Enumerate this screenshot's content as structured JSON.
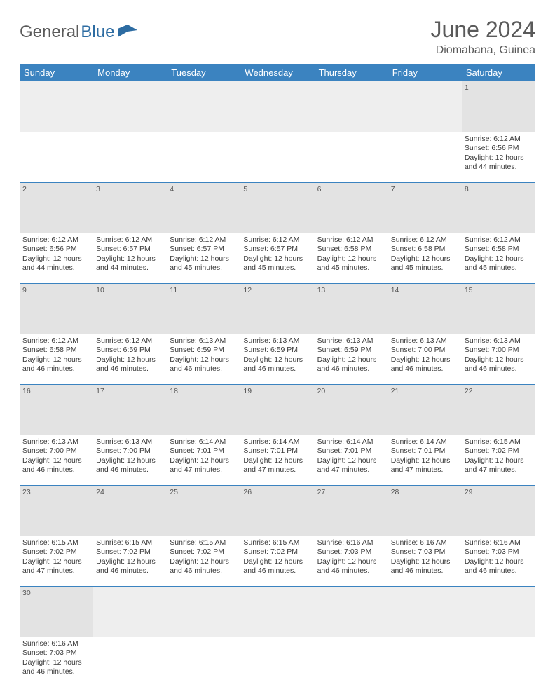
{
  "branding": {
    "logo_text_1": "General",
    "logo_text_2": "Blue",
    "logo_text_color": "#5a5a5a",
    "logo_accent_color": "#2d6ca2"
  },
  "header": {
    "month_title": "June 2024",
    "location": "Diomabana, Guinea"
  },
  "styling": {
    "header_bg": "#3b83c0",
    "header_fg": "#ffffff",
    "daynum_bg": "#e3e3e3",
    "blank_bg": "#eeeeee",
    "row_border": "#3b83c0",
    "body_font": "Arial",
    "title_fontsize": 32,
    "location_fontsize": 16,
    "dayheader_fontsize": 13,
    "cell_fontsize": 10.5
  },
  "calendar": {
    "day_headers": [
      "Sunday",
      "Monday",
      "Tuesday",
      "Wednesday",
      "Thursday",
      "Friday",
      "Saturday"
    ],
    "weeks": [
      [
        null,
        null,
        null,
        null,
        null,
        null,
        {
          "n": "1",
          "sunrise": "Sunrise: 6:12 AM",
          "sunset": "Sunset: 6:56 PM",
          "d1": "Daylight: 12 hours",
          "d2": "and 44 minutes."
        }
      ],
      [
        {
          "n": "2",
          "sunrise": "Sunrise: 6:12 AM",
          "sunset": "Sunset: 6:56 PM",
          "d1": "Daylight: 12 hours",
          "d2": "and 44 minutes."
        },
        {
          "n": "3",
          "sunrise": "Sunrise: 6:12 AM",
          "sunset": "Sunset: 6:57 PM",
          "d1": "Daylight: 12 hours",
          "d2": "and 44 minutes."
        },
        {
          "n": "4",
          "sunrise": "Sunrise: 6:12 AM",
          "sunset": "Sunset: 6:57 PM",
          "d1": "Daylight: 12 hours",
          "d2": "and 45 minutes."
        },
        {
          "n": "5",
          "sunrise": "Sunrise: 6:12 AM",
          "sunset": "Sunset: 6:57 PM",
          "d1": "Daylight: 12 hours",
          "d2": "and 45 minutes."
        },
        {
          "n": "6",
          "sunrise": "Sunrise: 6:12 AM",
          "sunset": "Sunset: 6:58 PM",
          "d1": "Daylight: 12 hours",
          "d2": "and 45 minutes."
        },
        {
          "n": "7",
          "sunrise": "Sunrise: 6:12 AM",
          "sunset": "Sunset: 6:58 PM",
          "d1": "Daylight: 12 hours",
          "d2": "and 45 minutes."
        },
        {
          "n": "8",
          "sunrise": "Sunrise: 6:12 AM",
          "sunset": "Sunset: 6:58 PM",
          "d1": "Daylight: 12 hours",
          "d2": "and 45 minutes."
        }
      ],
      [
        {
          "n": "9",
          "sunrise": "Sunrise: 6:12 AM",
          "sunset": "Sunset: 6:58 PM",
          "d1": "Daylight: 12 hours",
          "d2": "and 46 minutes."
        },
        {
          "n": "10",
          "sunrise": "Sunrise: 6:12 AM",
          "sunset": "Sunset: 6:59 PM",
          "d1": "Daylight: 12 hours",
          "d2": "and 46 minutes."
        },
        {
          "n": "11",
          "sunrise": "Sunrise: 6:13 AM",
          "sunset": "Sunset: 6:59 PM",
          "d1": "Daylight: 12 hours",
          "d2": "and 46 minutes."
        },
        {
          "n": "12",
          "sunrise": "Sunrise: 6:13 AM",
          "sunset": "Sunset: 6:59 PM",
          "d1": "Daylight: 12 hours",
          "d2": "and 46 minutes."
        },
        {
          "n": "13",
          "sunrise": "Sunrise: 6:13 AM",
          "sunset": "Sunset: 6:59 PM",
          "d1": "Daylight: 12 hours",
          "d2": "and 46 minutes."
        },
        {
          "n": "14",
          "sunrise": "Sunrise: 6:13 AM",
          "sunset": "Sunset: 7:00 PM",
          "d1": "Daylight: 12 hours",
          "d2": "and 46 minutes."
        },
        {
          "n": "15",
          "sunrise": "Sunrise: 6:13 AM",
          "sunset": "Sunset: 7:00 PM",
          "d1": "Daylight: 12 hours",
          "d2": "and 46 minutes."
        }
      ],
      [
        {
          "n": "16",
          "sunrise": "Sunrise: 6:13 AM",
          "sunset": "Sunset: 7:00 PM",
          "d1": "Daylight: 12 hours",
          "d2": "and 46 minutes."
        },
        {
          "n": "17",
          "sunrise": "Sunrise: 6:13 AM",
          "sunset": "Sunset: 7:00 PM",
          "d1": "Daylight: 12 hours",
          "d2": "and 46 minutes."
        },
        {
          "n": "18",
          "sunrise": "Sunrise: 6:14 AM",
          "sunset": "Sunset: 7:01 PM",
          "d1": "Daylight: 12 hours",
          "d2": "and 47 minutes."
        },
        {
          "n": "19",
          "sunrise": "Sunrise: 6:14 AM",
          "sunset": "Sunset: 7:01 PM",
          "d1": "Daylight: 12 hours",
          "d2": "and 47 minutes."
        },
        {
          "n": "20",
          "sunrise": "Sunrise: 6:14 AM",
          "sunset": "Sunset: 7:01 PM",
          "d1": "Daylight: 12 hours",
          "d2": "and 47 minutes."
        },
        {
          "n": "21",
          "sunrise": "Sunrise: 6:14 AM",
          "sunset": "Sunset: 7:01 PM",
          "d1": "Daylight: 12 hours",
          "d2": "and 47 minutes."
        },
        {
          "n": "22",
          "sunrise": "Sunrise: 6:15 AM",
          "sunset": "Sunset: 7:02 PM",
          "d1": "Daylight: 12 hours",
          "d2": "and 47 minutes."
        }
      ],
      [
        {
          "n": "23",
          "sunrise": "Sunrise: 6:15 AM",
          "sunset": "Sunset: 7:02 PM",
          "d1": "Daylight: 12 hours",
          "d2": "and 47 minutes."
        },
        {
          "n": "24",
          "sunrise": "Sunrise: 6:15 AM",
          "sunset": "Sunset: 7:02 PM",
          "d1": "Daylight: 12 hours",
          "d2": "and 46 minutes."
        },
        {
          "n": "25",
          "sunrise": "Sunrise: 6:15 AM",
          "sunset": "Sunset: 7:02 PM",
          "d1": "Daylight: 12 hours",
          "d2": "and 46 minutes."
        },
        {
          "n": "26",
          "sunrise": "Sunrise: 6:15 AM",
          "sunset": "Sunset: 7:02 PM",
          "d1": "Daylight: 12 hours",
          "d2": "and 46 minutes."
        },
        {
          "n": "27",
          "sunrise": "Sunrise: 6:16 AM",
          "sunset": "Sunset: 7:03 PM",
          "d1": "Daylight: 12 hours",
          "d2": "and 46 minutes."
        },
        {
          "n": "28",
          "sunrise": "Sunrise: 6:16 AM",
          "sunset": "Sunset: 7:03 PM",
          "d1": "Daylight: 12 hours",
          "d2": "and 46 minutes."
        },
        {
          "n": "29",
          "sunrise": "Sunrise: 6:16 AM",
          "sunset": "Sunset: 7:03 PM",
          "d1": "Daylight: 12 hours",
          "d2": "and 46 minutes."
        }
      ],
      [
        {
          "n": "30",
          "sunrise": "Sunrise: 6:16 AM",
          "sunset": "Sunset: 7:03 PM",
          "d1": "Daylight: 12 hours",
          "d2": "and 46 minutes."
        },
        null,
        null,
        null,
        null,
        null,
        null
      ]
    ]
  }
}
